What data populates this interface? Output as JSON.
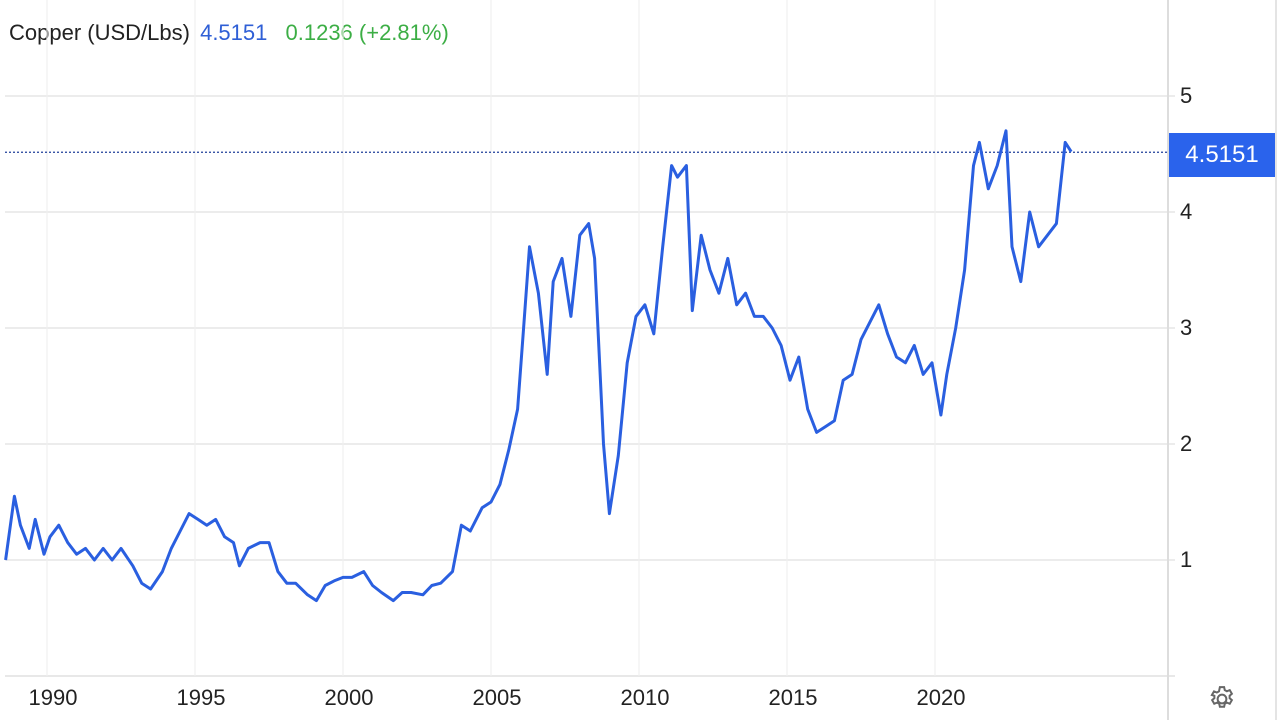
{
  "header": {
    "name": "Copper (USD/Lbs)",
    "price": "4.5151",
    "change": "0.1236 (+2.81%)"
  },
  "price_tag": "4.5151",
  "colors": {
    "line": "#2a5fe0",
    "price": "#2f5fd6",
    "change": "#3cae45",
    "grid": "#e6e6e6",
    "tag": "#2a63ec"
  },
  "settings_icon": "gear-icon",
  "chart_data": {
    "type": "line",
    "title": "Copper (USD/Lbs)",
    "xlabel": "",
    "ylabel": "",
    "ylim": [
      0,
      5.5
    ],
    "xlim": [
      1988.5,
      2024.6
    ],
    "grid": true,
    "legend_position": "none",
    "y_ticks": [
      "1",
      "2",
      "3",
      "4",
      "5"
    ],
    "x_ticks": [
      "1990",
      "1995",
      "2000",
      "2005",
      "2010",
      "2015",
      "2020"
    ],
    "last_value": 4.5151,
    "series": [
      {
        "name": "Copper",
        "x": [
          1988.6,
          1988.9,
          1989.1,
          1989.4,
          1989.6,
          1989.9,
          1990.1,
          1990.4,
          1990.7,
          1991.0,
          1991.3,
          1991.6,
          1991.9,
          1992.2,
          1992.5,
          1992.9,
          1993.2,
          1993.5,
          1993.9,
          1994.2,
          1994.5,
          1994.8,
          1995.1,
          1995.4,
          1995.7,
          1996.0,
          1996.3,
          1996.5,
          1996.8,
          1997.2,
          1997.5,
          1997.8,
          1998.1,
          1998.4,
          1998.8,
          1999.1,
          1999.4,
          1999.7,
          2000.0,
          2000.3,
          2000.7,
          2001.0,
          2001.3,
          2001.7,
          2002.0,
          2002.3,
          2002.7,
          2003.0,
          2003.3,
          2003.7,
          2004.0,
          2004.3,
          2004.7,
          2005.0,
          2005.3,
          2005.6,
          2005.9,
          2006.1,
          2006.3,
          2006.6,
          2006.9,
          2007.1,
          2007.4,
          2007.7,
          2008.0,
          2008.3,
          2008.5,
          2008.8,
          2009.0,
          2009.3,
          2009.6,
          2009.9,
          2010.2,
          2010.5,
          2010.8,
          2011.1,
          2011.3,
          2011.6,
          2011.8,
          2012.1,
          2012.4,
          2012.7,
          2013.0,
          2013.3,
          2013.6,
          2013.9,
          2014.2,
          2014.5,
          2014.8,
          2015.1,
          2015.4,
          2015.7,
          2016.0,
          2016.3,
          2016.6,
          2016.9,
          2017.2,
          2017.5,
          2017.8,
          2018.1,
          2018.4,
          2018.7,
          2019.0,
          2019.3,
          2019.6,
          2019.9,
          2020.2,
          2020.4,
          2020.7,
          2021.0,
          2021.3,
          2021.5,
          2021.8,
          2022.1,
          2022.4,
          2022.6,
          2022.9,
          2023.2,
          2023.5,
          2023.8,
          2024.1,
          2024.4,
          2024.6
        ],
        "values": [
          1.0,
          1.55,
          1.3,
          1.1,
          1.35,
          1.05,
          1.2,
          1.3,
          1.15,
          1.05,
          1.1,
          1.0,
          1.1,
          1.0,
          1.1,
          0.95,
          0.8,
          0.75,
          0.9,
          1.1,
          1.25,
          1.4,
          1.35,
          1.3,
          1.35,
          1.2,
          1.15,
          0.95,
          1.1,
          1.15,
          1.15,
          0.9,
          0.8,
          0.8,
          0.7,
          0.65,
          0.78,
          0.82,
          0.85,
          0.85,
          0.9,
          0.78,
          0.72,
          0.65,
          0.72,
          0.72,
          0.7,
          0.78,
          0.8,
          0.9,
          1.3,
          1.25,
          1.45,
          1.5,
          1.65,
          1.95,
          2.3,
          3.0,
          3.7,
          3.3,
          2.6,
          3.4,
          3.6,
          3.1,
          3.8,
          3.9,
          3.6,
          2.0,
          1.4,
          1.9,
          2.7,
          3.1,
          3.2,
          2.95,
          3.7,
          4.4,
          4.3,
          4.4,
          3.15,
          3.8,
          3.5,
          3.3,
          3.6,
          3.2,
          3.3,
          3.1,
          3.1,
          3.0,
          2.85,
          2.55,
          2.75,
          2.3,
          2.1,
          2.15,
          2.2,
          2.55,
          2.6,
          2.9,
          3.05,
          3.2,
          2.95,
          2.75,
          2.7,
          2.85,
          2.6,
          2.7,
          2.25,
          2.6,
          3.0,
          3.5,
          4.4,
          4.6,
          4.2,
          4.4,
          4.7,
          3.7,
          3.4,
          4.0,
          3.7,
          3.8,
          3.9,
          4.6,
          4.52
        ]
      }
    ]
  }
}
